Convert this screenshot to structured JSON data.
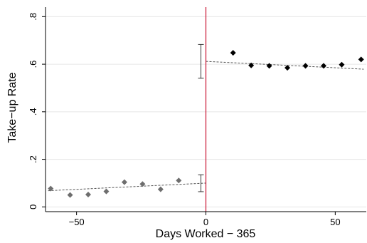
{
  "chart_data": {
    "type": "scatter",
    "title": "",
    "xlabel": "Days Worked − 365",
    "ylabel": "Take−up Rate",
    "xlim": [
      -62,
      62
    ],
    "ylim": [
      -0.02,
      0.84
    ],
    "x_ticks": [
      {
        "value": -50,
        "label": "−50"
      },
      {
        "value": 0,
        "label": "0"
      },
      {
        "value": 50,
        "label": "50"
      }
    ],
    "y_ticks": [
      {
        "value": 0,
        "label": "0"
      },
      {
        "value": 0.2,
        "label": ".2"
      },
      {
        "value": 0.4,
        "label": ".4"
      },
      {
        "value": 0.6,
        "label": ".6"
      },
      {
        "value": 0.8,
        "label": ".8"
      }
    ],
    "grid": true,
    "legend": "none",
    "cutoff": {
      "x": 0,
      "color": "#c8102e"
    },
    "series": [
      {
        "side": "left",
        "color": "#6e6e6e",
        "x": [
          -60,
          -52.5,
          -45.5,
          -38.5,
          -31.5,
          -24.5,
          -17.5,
          -10.5
        ],
        "y": [
          0.077,
          0.05,
          0.052,
          0.065,
          0.104,
          0.096,
          0.074,
          0.111
        ]
      },
      {
        "side": "right",
        "color": "#000000",
        "x": [
          10.5,
          17.5,
          24.5,
          31.5,
          38.5,
          45.5,
          52.5,
          60
        ],
        "y": [
          0.648,
          0.595,
          0.593,
          0.585,
          0.593,
          0.593,
          0.598,
          0.62
        ]
      }
    ],
    "fit_lines": [
      {
        "side": "left",
        "x": [
          -61,
          0
        ],
        "y": [
          0.068,
          0.1
        ]
      },
      {
        "side": "right",
        "x": [
          0,
          61
        ],
        "y": [
          0.612,
          0.579
        ]
      }
    ],
    "confidence_intervals": [
      {
        "side": "left",
        "x": 0,
        "low": 0.064,
        "high": 0.135
      },
      {
        "side": "right",
        "x": 0,
        "low": 0.541,
        "high": 0.683
      }
    ],
    "colors": {
      "grid": "#e6e6e6",
      "fit_line": "#555555",
      "axis": "#000000"
    }
  }
}
